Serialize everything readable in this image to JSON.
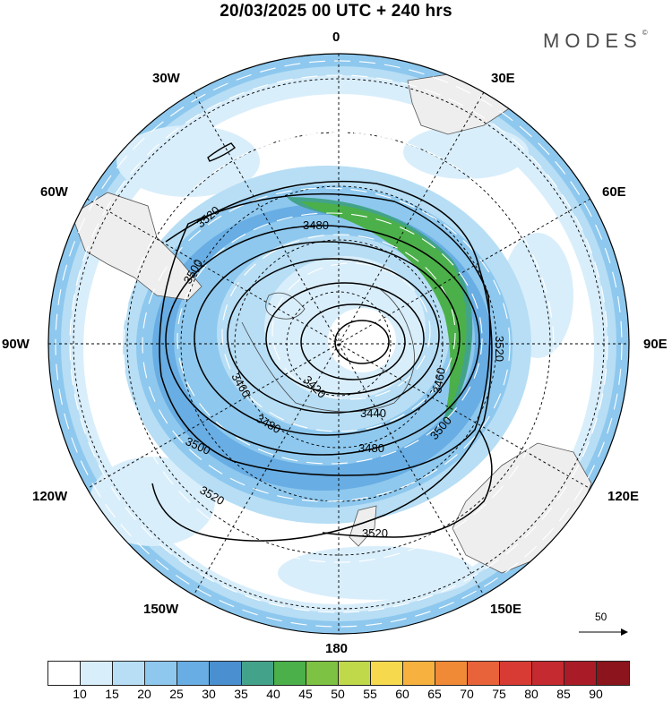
{
  "title": "20/03/2025  00 UTC  + 240 hrs",
  "brand": "MODES",
  "brand_mark": "©",
  "longitude_labels": {
    "top": "0",
    "top_left": "30W",
    "top_right": "30E",
    "upper_left": "60W",
    "upper_right": "60E",
    "left": "90W",
    "right": "90E",
    "lower_left": "120W",
    "lower_right": "120E",
    "bottom_left": "150W",
    "bottom_right": "150E",
    "bottom": "180"
  },
  "contour_labels": [
    "3520",
    "3500",
    "3480",
    "3460",
    "3420",
    "3440",
    "3480",
    "3500",
    "3460",
    "3520",
    "3460",
    "3480",
    "3500",
    "3520",
    "3520"
  ],
  "wind_scale_value": "50",
  "colorbar": {
    "ticks": [
      "10",
      "15",
      "20",
      "25",
      "30",
      "35",
      "40",
      "45",
      "50",
      "55",
      "60",
      "65",
      "70",
      "75",
      "80",
      "85",
      "90"
    ],
    "colors": [
      "#ffffff",
      "#d9eefb",
      "#b7def5",
      "#8ec8ee",
      "#68ade3",
      "#4a8fcf",
      "#43a38a",
      "#4bb049",
      "#7dc242",
      "#bfd94a",
      "#f6d94c",
      "#f6b13e",
      "#f18a37",
      "#e8623a",
      "#d83b34",
      "#c42a30",
      "#a91c27",
      "#8c141c"
    ]
  },
  "colors": {
    "ocean_white": "#ffffff",
    "land_gray": "#eeeeee",
    "contour_line": "#000000",
    "wind_arrow": "#ffffff"
  }
}
